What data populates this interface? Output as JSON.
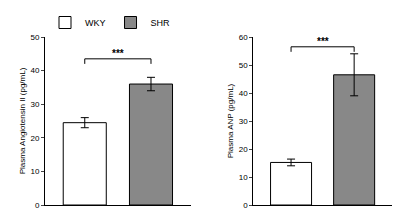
{
  "chart_data": [
    {
      "type": "bar",
      "ylabel": "Plasma Angiotensin II (pg/mL)",
      "ylim": [
        0,
        50
      ],
      "yticks": [
        0,
        10,
        20,
        30,
        40,
        50
      ],
      "series": [
        {
          "name": "WKY",
          "color": "#ffffff",
          "values": [
            24.5
          ],
          "error": [
            1.5
          ]
        },
        {
          "name": "SHR",
          "color": "#888888",
          "values": [
            36.0
          ],
          "error": [
            2.0
          ]
        }
      ],
      "annotations": [
        {
          "text": "***",
          "y": 43.5
        }
      ],
      "legend": "upper left",
      "grid": false,
      "tick_labels": "y"
    },
    {
      "type": "bar",
      "ylabel": "Plasma ANP (pg/mL)",
      "ylim": [
        0,
        60
      ],
      "yticks": [
        0,
        10,
        20,
        30,
        40,
        50,
        60
      ],
      "series": [
        {
          "name": "WKY",
          "color": "#ffffff",
          "values": [
            15.2
          ],
          "error": [
            1.2
          ]
        },
        {
          "name": "SHR",
          "color": "#888888",
          "values": [
            46.5
          ],
          "error": [
            7.5
          ]
        }
      ],
      "annotations": [
        {
          "text": "***",
          "y": 56.5
        }
      ],
      "grid": false,
      "tick_labels": "y"
    }
  ]
}
